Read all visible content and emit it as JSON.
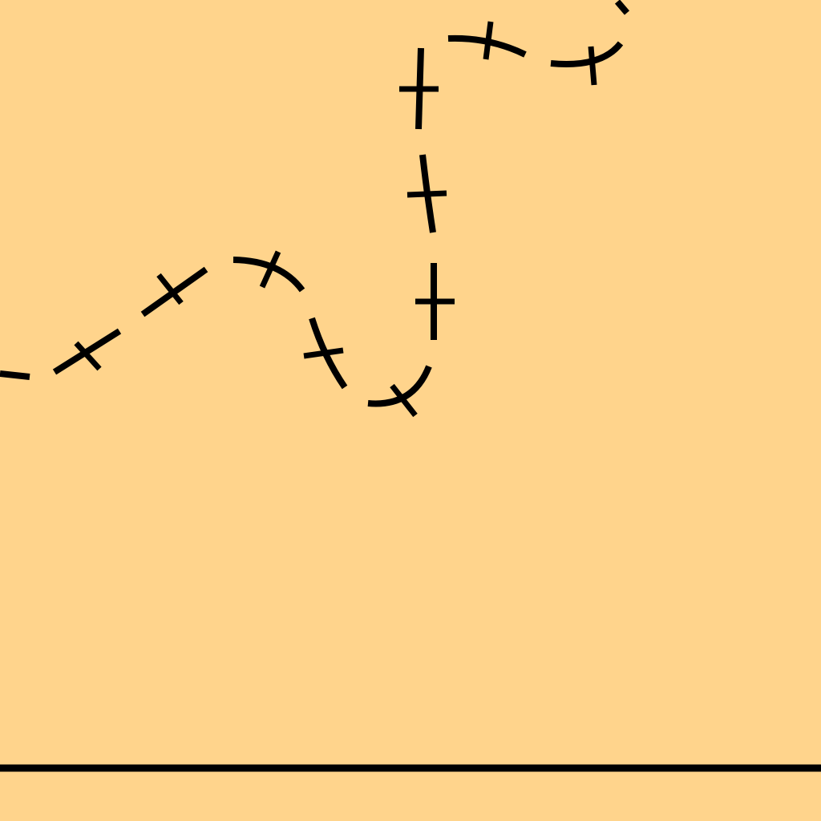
{
  "scene": {
    "background_color": "#ffd48c",
    "ink_color": "#000000",
    "elements": [
      "dashed-path",
      "stitch-marks",
      "ground-line"
    ]
  }
}
